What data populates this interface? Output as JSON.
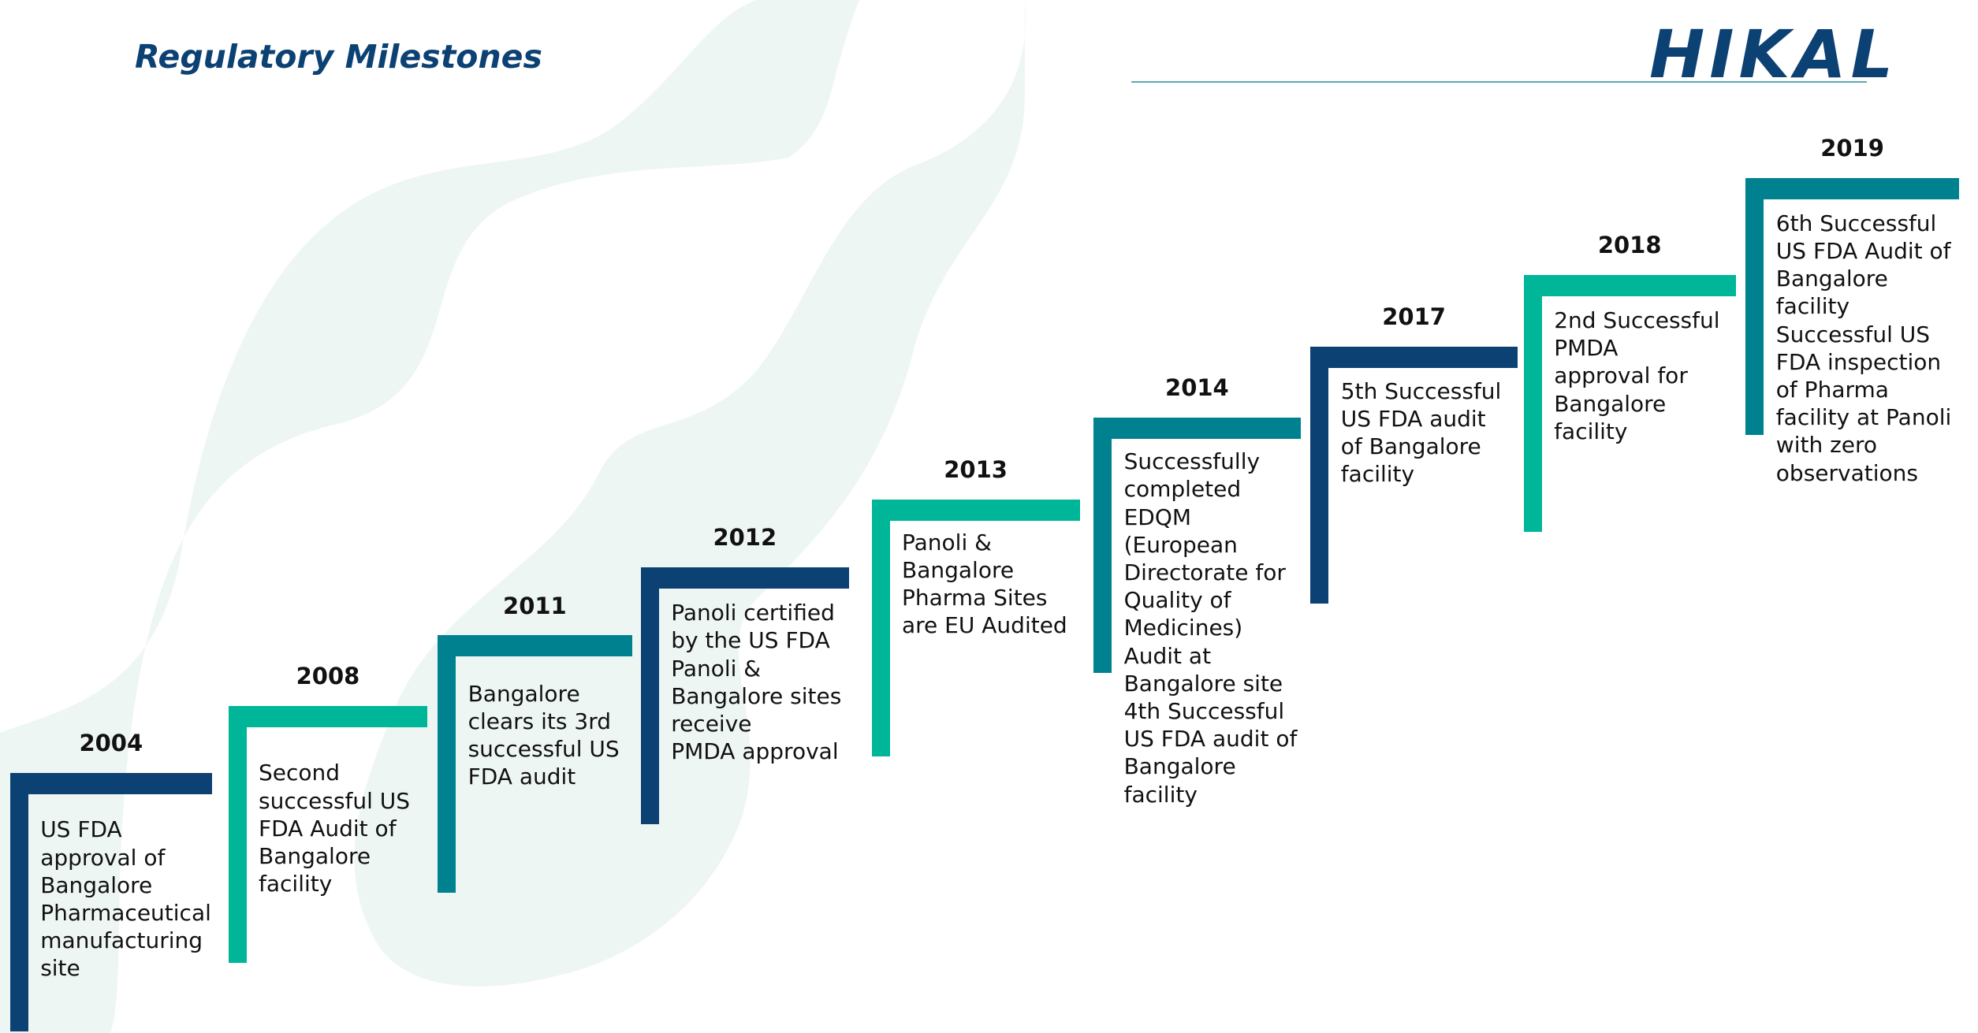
{
  "header": {
    "title": "Regulatory Milestones",
    "logo": "HIKAL"
  },
  "milestones": [
    {
      "year": "2004",
      "lines": [
        "US FDA",
        "approval of",
        "Bangalore",
        "Pharmaceutical",
        "manufacturing",
        "site"
      ]
    },
    {
      "year": "2008",
      "lines": [
        "Second",
        "successful US",
        "FDA Audit of",
        "Bangalore",
        "facility"
      ]
    },
    {
      "year": "2011",
      "lines": [
        "Bangalore",
        "clears its 3rd",
        "successful US",
        "FDA audit"
      ]
    },
    {
      "year": "2012",
      "lines": [
        "Panoli certified",
        "by the US FDA",
        "Panoli &",
        "Bangalore sites",
        "receive",
        "PMDA  approval"
      ]
    },
    {
      "year": "2013",
      "lines": [
        "Panoli &",
        "Bangalore",
        "Pharma Sites",
        "are EU Audited"
      ]
    },
    {
      "year": "2014",
      "lines": [
        "Successfully",
        "completed",
        "EDQM",
        "(European",
        "Directorate for",
        "Quality of",
        "Medicines)",
        "Audit at",
        "Bangalore site",
        "4th Successful",
        "US FDA audit of",
        "Bangalore",
        "facility"
      ]
    },
    {
      "year": "2017",
      "lines": [
        "5th Successful",
        "US FDA audit",
        "of Bangalore",
        "facility"
      ]
    },
    {
      "year": "2018",
      "lines": [
        "2nd Successful",
        "PMDA",
        "approval for",
        "Bangalore",
        "facility"
      ]
    },
    {
      "year": "2019",
      "lines": [
        "6th Successful",
        "US FDA Audit of",
        "Bangalore",
        "facility",
        "Successful US",
        "FDA inspection",
        "of Pharma",
        "facility at Panoli",
        "with zero",
        "observations"
      ]
    }
  ]
}
